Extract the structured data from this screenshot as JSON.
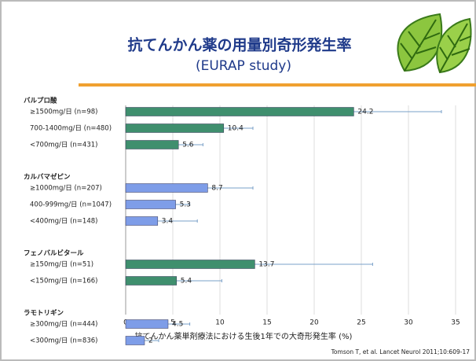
{
  "chart_data": {
    "type": "bar",
    "title": "抗てんかん薬の用量別奇形発生率",
    "subtitle": "(EURAP study)",
    "xlabel": "抗てんかん薬単剤療法における生後1年での大奇形発生率 (%)",
    "source": "Tomson T, et al. Lancet Neurol 2011;10:609-17",
    "xlim": [
      0,
      35
    ],
    "xticks": [
      0,
      5,
      10,
      15,
      20,
      25,
      30,
      35
    ],
    "grid": true,
    "groups": [
      {
        "name": "バルプロ酸",
        "color": "#3f8f6e",
        "categories": [
          "≥1500mg/日 (n=98)",
          "700-1400mg/日 (n=480)",
          "<700mg/日 (n=431)"
        ],
        "values": [
          24.2,
          10.4,
          5.6
        ],
        "ci_upper": [
          33.5,
          13.5,
          8.2
        ]
      },
      {
        "name": "カルバマゼピン",
        "color": "#7e9de8",
        "categories": [
          "≥1000mg/日 (n=207)",
          "400-999mg/日 (n=1047)",
          "<400mg/日 (n=148)"
        ],
        "values": [
          8.7,
          5.3,
          3.4
        ],
        "ci_upper": [
          13.5,
          6.8,
          7.6
        ]
      },
      {
        "name": "フェノバルビタール",
        "color": "#3f8f6e",
        "categories": [
          "≥150mg/日 (n=51)",
          "<150mg/日 (n=166)"
        ],
        "values": [
          13.7,
          5.4
        ],
        "ci_upper": [
          26.2,
          10.2
        ]
      },
      {
        "name": "ラモトリギン",
        "color": "#7e9de8",
        "categories": [
          "≥300mg/日 (n=444)",
          "<300mg/日 (n=836)"
        ],
        "values": [
          4.5,
          2
        ],
        "ci_upper": [
          6.8,
          3.5
        ]
      }
    ]
  }
}
